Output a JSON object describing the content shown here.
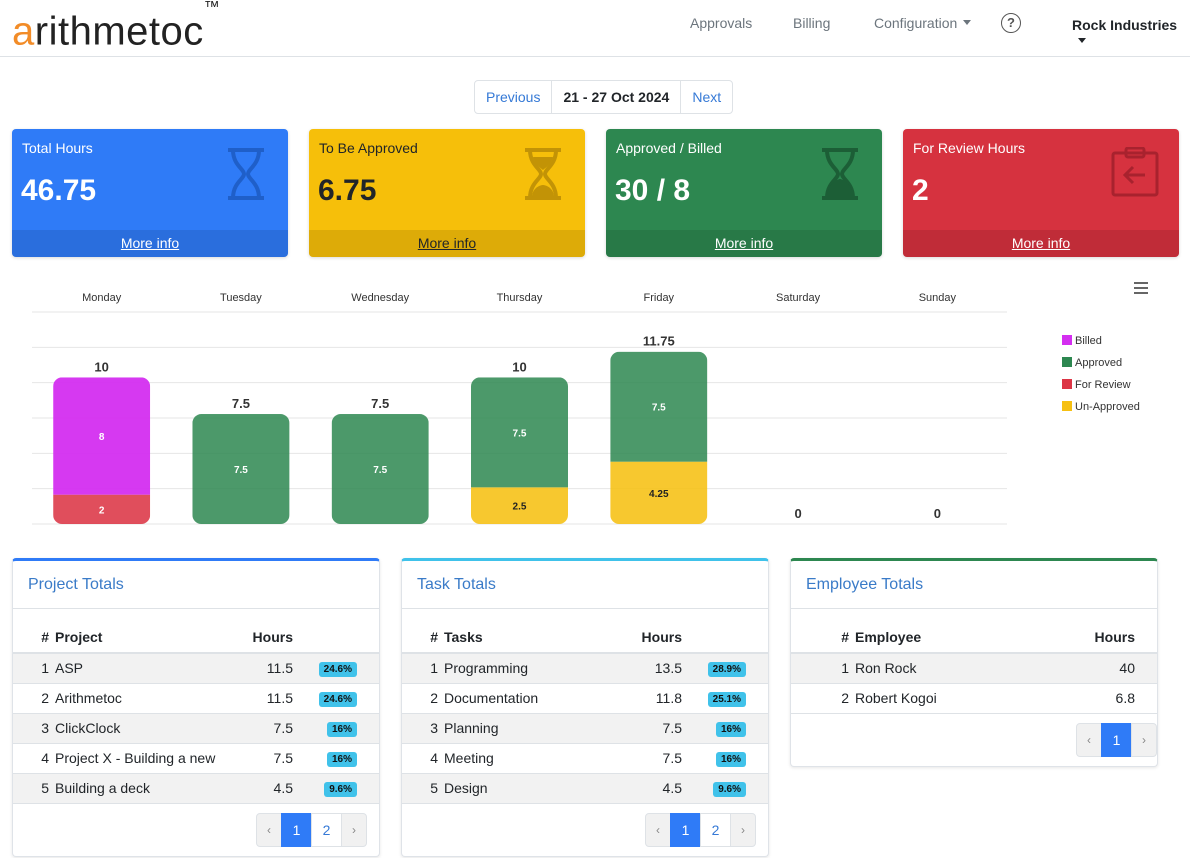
{
  "nav": {
    "logo_first": "a",
    "logo_rest": "rithmetoc",
    "logo_tm": "™",
    "items": [
      "Approvals",
      "Billing",
      "Configuration"
    ],
    "help": "?",
    "company": "Rock Industries"
  },
  "week": {
    "prev": "Previous",
    "range": "21 - 27 Oct 2024",
    "next": "Next"
  },
  "stats": [
    {
      "label": "Total Hours",
      "value": "46.75",
      "more": "More info",
      "color": "#2f7bf7",
      "icon": "hourglass-empty-icon"
    },
    {
      "label": "To Be Approved",
      "value": "6.75",
      "more": "More info",
      "color": "#f6bf0a",
      "icon": "hourglass-half-icon"
    },
    {
      "label": "Approved / Billed",
      "value": "30 / 8",
      "more": "More info",
      "color": "#2d8750",
      "icon": "hourglass-end-icon"
    },
    {
      "label": "For Review Hours",
      "value": "2",
      "more": "More info",
      "color": "#d6323f",
      "icon": "clipboard-return-icon"
    }
  ],
  "chart_data": {
    "type": "bar",
    "stacked": true,
    "categories": [
      "Monday",
      "Tuesday",
      "Wednesday",
      "Thursday",
      "Friday",
      "Saturday",
      "Sunday"
    ],
    "totals": [
      "10",
      "7.5",
      "7.5",
      "10",
      "11.75",
      "0",
      "0"
    ],
    "series": [
      {
        "name": "Billed",
        "color": "#d42ef0",
        "values": [
          8,
          0,
          0,
          0,
          0,
          0,
          0
        ]
      },
      {
        "name": "Approved",
        "color": "#2d8750",
        "values": [
          0,
          7.5,
          7.5,
          7.5,
          7.5,
          0,
          0
        ]
      },
      {
        "name": "For Review",
        "color": "#dc3545",
        "values": [
          2,
          0,
          0,
          0,
          0,
          0,
          0
        ]
      },
      {
        "name": "Un-Approved",
        "color": "#f6c012",
        "values": [
          0,
          0,
          0,
          2.5,
          4.25,
          0,
          0
        ]
      }
    ],
    "ylim": [
      0,
      12
    ],
    "grid": true,
    "legend": "right"
  },
  "projects": {
    "title": "Project Totals",
    "headers": [
      "#",
      "Project",
      "Hours"
    ],
    "rows": [
      {
        "n": "1",
        "name": "ASP",
        "hours": "11.5",
        "pct": "24.6%"
      },
      {
        "n": "2",
        "name": "Arithmetoc",
        "hours": "11.5",
        "pct": "24.6%"
      },
      {
        "n": "3",
        "name": "ClickClock",
        "hours": "7.5",
        "pct": "16%"
      },
      {
        "n": "4",
        "name": "Project X - Building a new",
        "hours": "7.5",
        "pct": "16%"
      },
      {
        "n": "5",
        "name": "Building a deck",
        "hours": "4.5",
        "pct": "9.6%"
      }
    ],
    "pages": [
      "1",
      "2"
    ]
  },
  "tasks": {
    "title": "Task Totals",
    "headers": [
      "#",
      "Tasks",
      "Hours"
    ],
    "rows": [
      {
        "n": "1",
        "name": "Programming",
        "hours": "13.5",
        "pct": "28.9%"
      },
      {
        "n": "2",
        "name": "Documentation",
        "hours": "11.8",
        "pct": "25.1%"
      },
      {
        "n": "3",
        "name": "Planning",
        "hours": "7.5",
        "pct": "16%"
      },
      {
        "n": "4",
        "name": "Meeting",
        "hours": "7.5",
        "pct": "16%"
      },
      {
        "n": "5",
        "name": "Design",
        "hours": "4.5",
        "pct": "9.6%"
      }
    ],
    "pages": [
      "1",
      "2"
    ]
  },
  "employees": {
    "title": "Employee Totals",
    "headers": [
      "#",
      "Employee",
      "Hours"
    ],
    "rows": [
      {
        "n": "1",
        "name": "Ron Rock",
        "hours": "40"
      },
      {
        "n": "2",
        "name": "Robert Kogoi",
        "hours": "6.8"
      }
    ],
    "pages": [
      "1"
    ]
  },
  "pager_arrows": {
    "prev": "‹",
    "next": "›"
  }
}
